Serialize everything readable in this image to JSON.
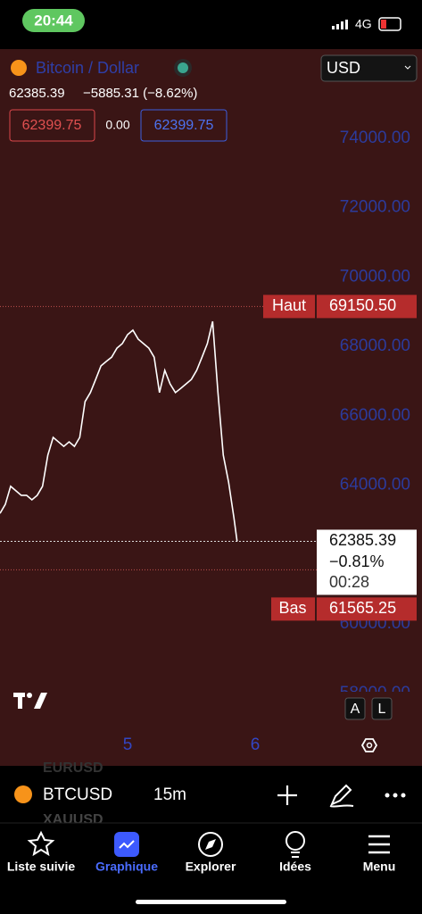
{
  "status": {
    "time": "20:44",
    "network": "4G"
  },
  "header": {
    "symbol_name": "Bitcoin / Dollar",
    "last": "62385.39",
    "change": "−5885.31 (−8.62%)",
    "bid": "62399.75",
    "spread": "0.00",
    "ask": "62399.75",
    "currency": "USD"
  },
  "chart_data": {
    "type": "line",
    "color": "#ffffff",
    "x": [
      0,
      1,
      2,
      3,
      4,
      5,
      6,
      7,
      8,
      9,
      10,
      11,
      12,
      13,
      14,
      15,
      16,
      17,
      18,
      19,
      20,
      21,
      22,
      23,
      24,
      25,
      26,
      27,
      28,
      29,
      30,
      31,
      32,
      33,
      34,
      35,
      36,
      37,
      38,
      39,
      40,
      41,
      42,
      43,
      44,
      44.6
    ],
    "values": [
      63190,
      63450,
      63970,
      63840,
      63710,
      63710,
      63580,
      63710,
      63970,
      64870,
      65380,
      65250,
      65120,
      65250,
      65120,
      65380,
      66410,
      66670,
      67050,
      67440,
      67570,
      67690,
      67950,
      68080,
      68340,
      68470,
      68210,
      68080,
      67950,
      67690,
      66670,
      67310,
      66920,
      66670,
      66790,
      66920,
      67050,
      67310,
      67690,
      68080,
      68720,
      66670,
      64870,
      64090,
      63070,
      62385.39
    ],
    "xlim": [
      0,
      78
    ],
    "xticks": [
      {
        "value": 24,
        "label": "5"
      },
      {
        "value": 48,
        "label": "6"
      }
    ],
    "ylim": [
      58000,
      76000
    ],
    "yticks": [
      {
        "value": 58000,
        "label": "58000.00"
      },
      {
        "value": 60000,
        "label": "60000.00"
      },
      {
        "value": 62000,
        "label": "62000.00"
      },
      {
        "value": 64000,
        "label": "64000.00"
      },
      {
        "value": 66000,
        "label": "66000.00"
      },
      {
        "value": 68000,
        "label": "68000.00"
      },
      {
        "value": 70000,
        "label": "70000.00"
      },
      {
        "value": 72000,
        "label": "72000.00"
      },
      {
        "value": 74000,
        "label": "74000.00"
      }
    ],
    "high": {
      "label": "Haut",
      "value": 69150.5,
      "value_label": "69150.50"
    },
    "low": {
      "label": "Bas",
      "value": 61565.25
    },
    "current": {
      "value": 62385.39,
      "change": "−0.81%",
      "countdown": "00:28"
    },
    "scale_buttons": [
      "A",
      "L"
    ]
  },
  "watchlist": {
    "previous": "EURUSD",
    "symbol": "BTCUSD",
    "interval": "15m",
    "next": "XAUUSD"
  },
  "tabs": [
    "Liste suivie",
    "Graphique",
    "Explorer",
    "Idées",
    "Menu"
  ]
}
